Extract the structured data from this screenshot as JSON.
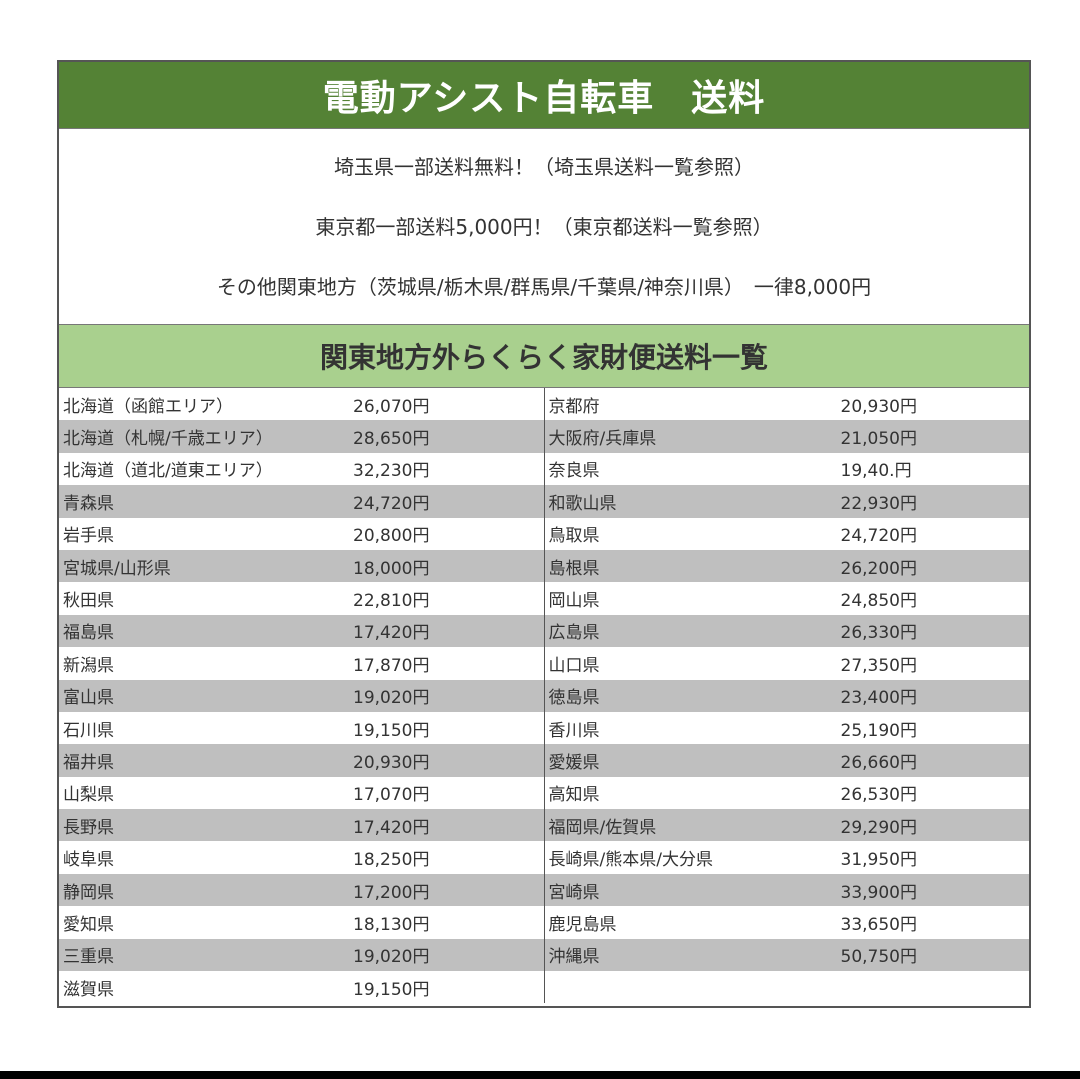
{
  "title": "電動アシスト自転車　送料",
  "notes": [
    "埼玉県一部送料無料！（埼玉県送料一覧参照）",
    "東京都一部送料5,000円！（東京都送料一覧参照）",
    "その他関東地方（茨城県/栃木県/群馬県/千葉県/神奈川県）　一律8,000円"
  ],
  "subtitle": "関東地方外らくらく家財便送料一覧",
  "colors": {
    "header": "#548235",
    "subheader": "#a9d08e",
    "stripe": "#bfbfbf"
  },
  "left": [
    {
      "name": "北海道（函館エリア）",
      "price": "26,070円"
    },
    {
      "name": "北海道（札幌/千歳エリア）",
      "price": "28,650円"
    },
    {
      "name": "北海道（道北/道東エリア）",
      "price": "32,230円"
    },
    {
      "name": "青森県",
      "price": "24,720円"
    },
    {
      "name": "岩手県",
      "price": "20,800円"
    },
    {
      "name": "宮城県/山形県",
      "price": "18,000円"
    },
    {
      "name": "秋田県",
      "price": "22,810円"
    },
    {
      "name": "福島県",
      "price": "17,420円"
    },
    {
      "name": "新潟県",
      "price": "17,870円"
    },
    {
      "name": "富山県",
      "price": "19,020円"
    },
    {
      "name": "石川県",
      "price": "19,150円"
    },
    {
      "name": "福井県",
      "price": "20,930円"
    },
    {
      "name": "山梨県",
      "price": "17,070円"
    },
    {
      "name": "長野県",
      "price": "17,420円"
    },
    {
      "name": "岐阜県",
      "price": "18,250円"
    },
    {
      "name": "静岡県",
      "price": "17,200円"
    },
    {
      "name": "愛知県",
      "price": "18,130円"
    },
    {
      "name": "三重県",
      "price": "19,020円"
    },
    {
      "name": "滋賀県",
      "price": "19,150円"
    }
  ],
  "right": [
    {
      "name": "京都府",
      "price": "20,930円"
    },
    {
      "name": "大阪府/兵庫県",
      "price": "21,050円"
    },
    {
      "name": "奈良県",
      "price": "19,40.円"
    },
    {
      "name": "和歌山県",
      "price": "22,930円"
    },
    {
      "name": "鳥取県",
      "price": "24,720円"
    },
    {
      "name": "島根県",
      "price": "26,200円"
    },
    {
      "name": "岡山県",
      "price": "24,850円"
    },
    {
      "name": "広島県",
      "price": "26,330円"
    },
    {
      "name": "山口県",
      "price": "27,350円"
    },
    {
      "name": "徳島県",
      "price": "23,400円"
    },
    {
      "name": "香川県",
      "price": "25,190円"
    },
    {
      "name": "愛媛県",
      "price": "26,660円"
    },
    {
      "name": "高知県",
      "price": "26,530円"
    },
    {
      "name": "福岡県/佐賀県",
      "price": "29,290円"
    },
    {
      "name": "長崎県/熊本県/大分県",
      "price": "31,950円"
    },
    {
      "name": "宮崎県",
      "price": "33,900円"
    },
    {
      "name": "鹿児島県",
      "price": "33,650円"
    },
    {
      "name": "沖縄県",
      "price": "50,750円"
    },
    {
      "name": "",
      "price": ""
    }
  ]
}
